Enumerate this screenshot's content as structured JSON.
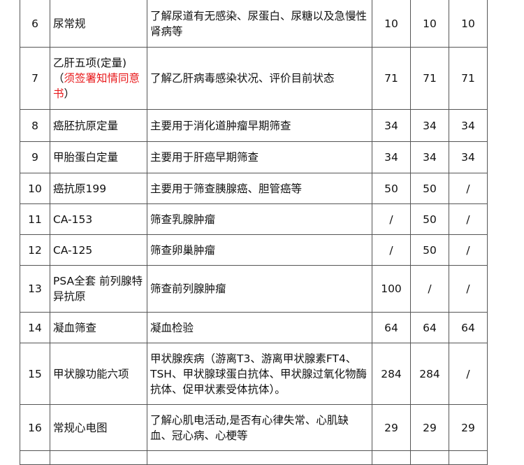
{
  "rows": [
    {
      "no": "6",
      "name": "尿常规",
      "desc": "了解尿道有无感染、尿蛋白、尿糖以及急慢性肾病等",
      "p1": "10",
      "p2": "10",
      "p3": "10"
    },
    {
      "no": "7",
      "name": "乙肝五项(定量)",
      "name_open": "（",
      "name_red": "须签署知情同意书",
      "name_close": "）",
      "desc": "了解乙肝病毒感染状况、评价目前状态",
      "p1": "71",
      "p2": "71",
      "p3": "71"
    },
    {
      "no": "8",
      "name": "癌胚抗原定量",
      "desc": "主要用于消化道肿瘤早期筛查",
      "p1": "34",
      "p2": "34",
      "p3": "34"
    },
    {
      "no": "9",
      "name": "甲胎蛋白定量",
      "desc": "主要用于肝癌早期筛查",
      "p1": "34",
      "p2": "34",
      "p3": "34"
    },
    {
      "no": "10",
      "name": "癌抗原199",
      "desc": "主要用于筛查胰腺癌、胆管癌等",
      "p1": "50",
      "p2": "50",
      "p3": "/"
    },
    {
      "no": "11",
      "name": "CA-153",
      "desc": "筛查乳腺肿瘤",
      "p1": "/",
      "p2": "50",
      "p3": "/"
    },
    {
      "no": "12",
      "name": "CA-125",
      "desc": "筛查卵巢肿瘤",
      "p1": "/",
      "p2": "50",
      "p3": "/"
    },
    {
      "no": "13",
      "name": "PSA全套 前列腺特异抗原",
      "desc": "筛查前列腺肿瘤",
      "p1": "100",
      "p2": "/",
      "p3": "/"
    },
    {
      "no": "14",
      "name": "凝血筛查",
      "desc": "凝血检验",
      "p1": "64",
      "p2": "64",
      "p3": "64"
    },
    {
      "no": "15",
      "name": "甲状腺功能六项",
      "desc": "甲状腺疾病（游离T3、游离甲状腺素FT4、TSH、甲状腺球蛋白抗体、甲状腺过氧化物酶抗体、促甲状素受体抗体）。",
      "p1": "284",
      "p2": "284",
      "p3": "/"
    },
    {
      "no": "16",
      "name": "常规心电图",
      "desc": "了解心肌电活动,是否有心律失常、心肌缺血、冠心病、心梗等",
      "p1": "29",
      "p2": "29",
      "p3": "29"
    }
  ]
}
